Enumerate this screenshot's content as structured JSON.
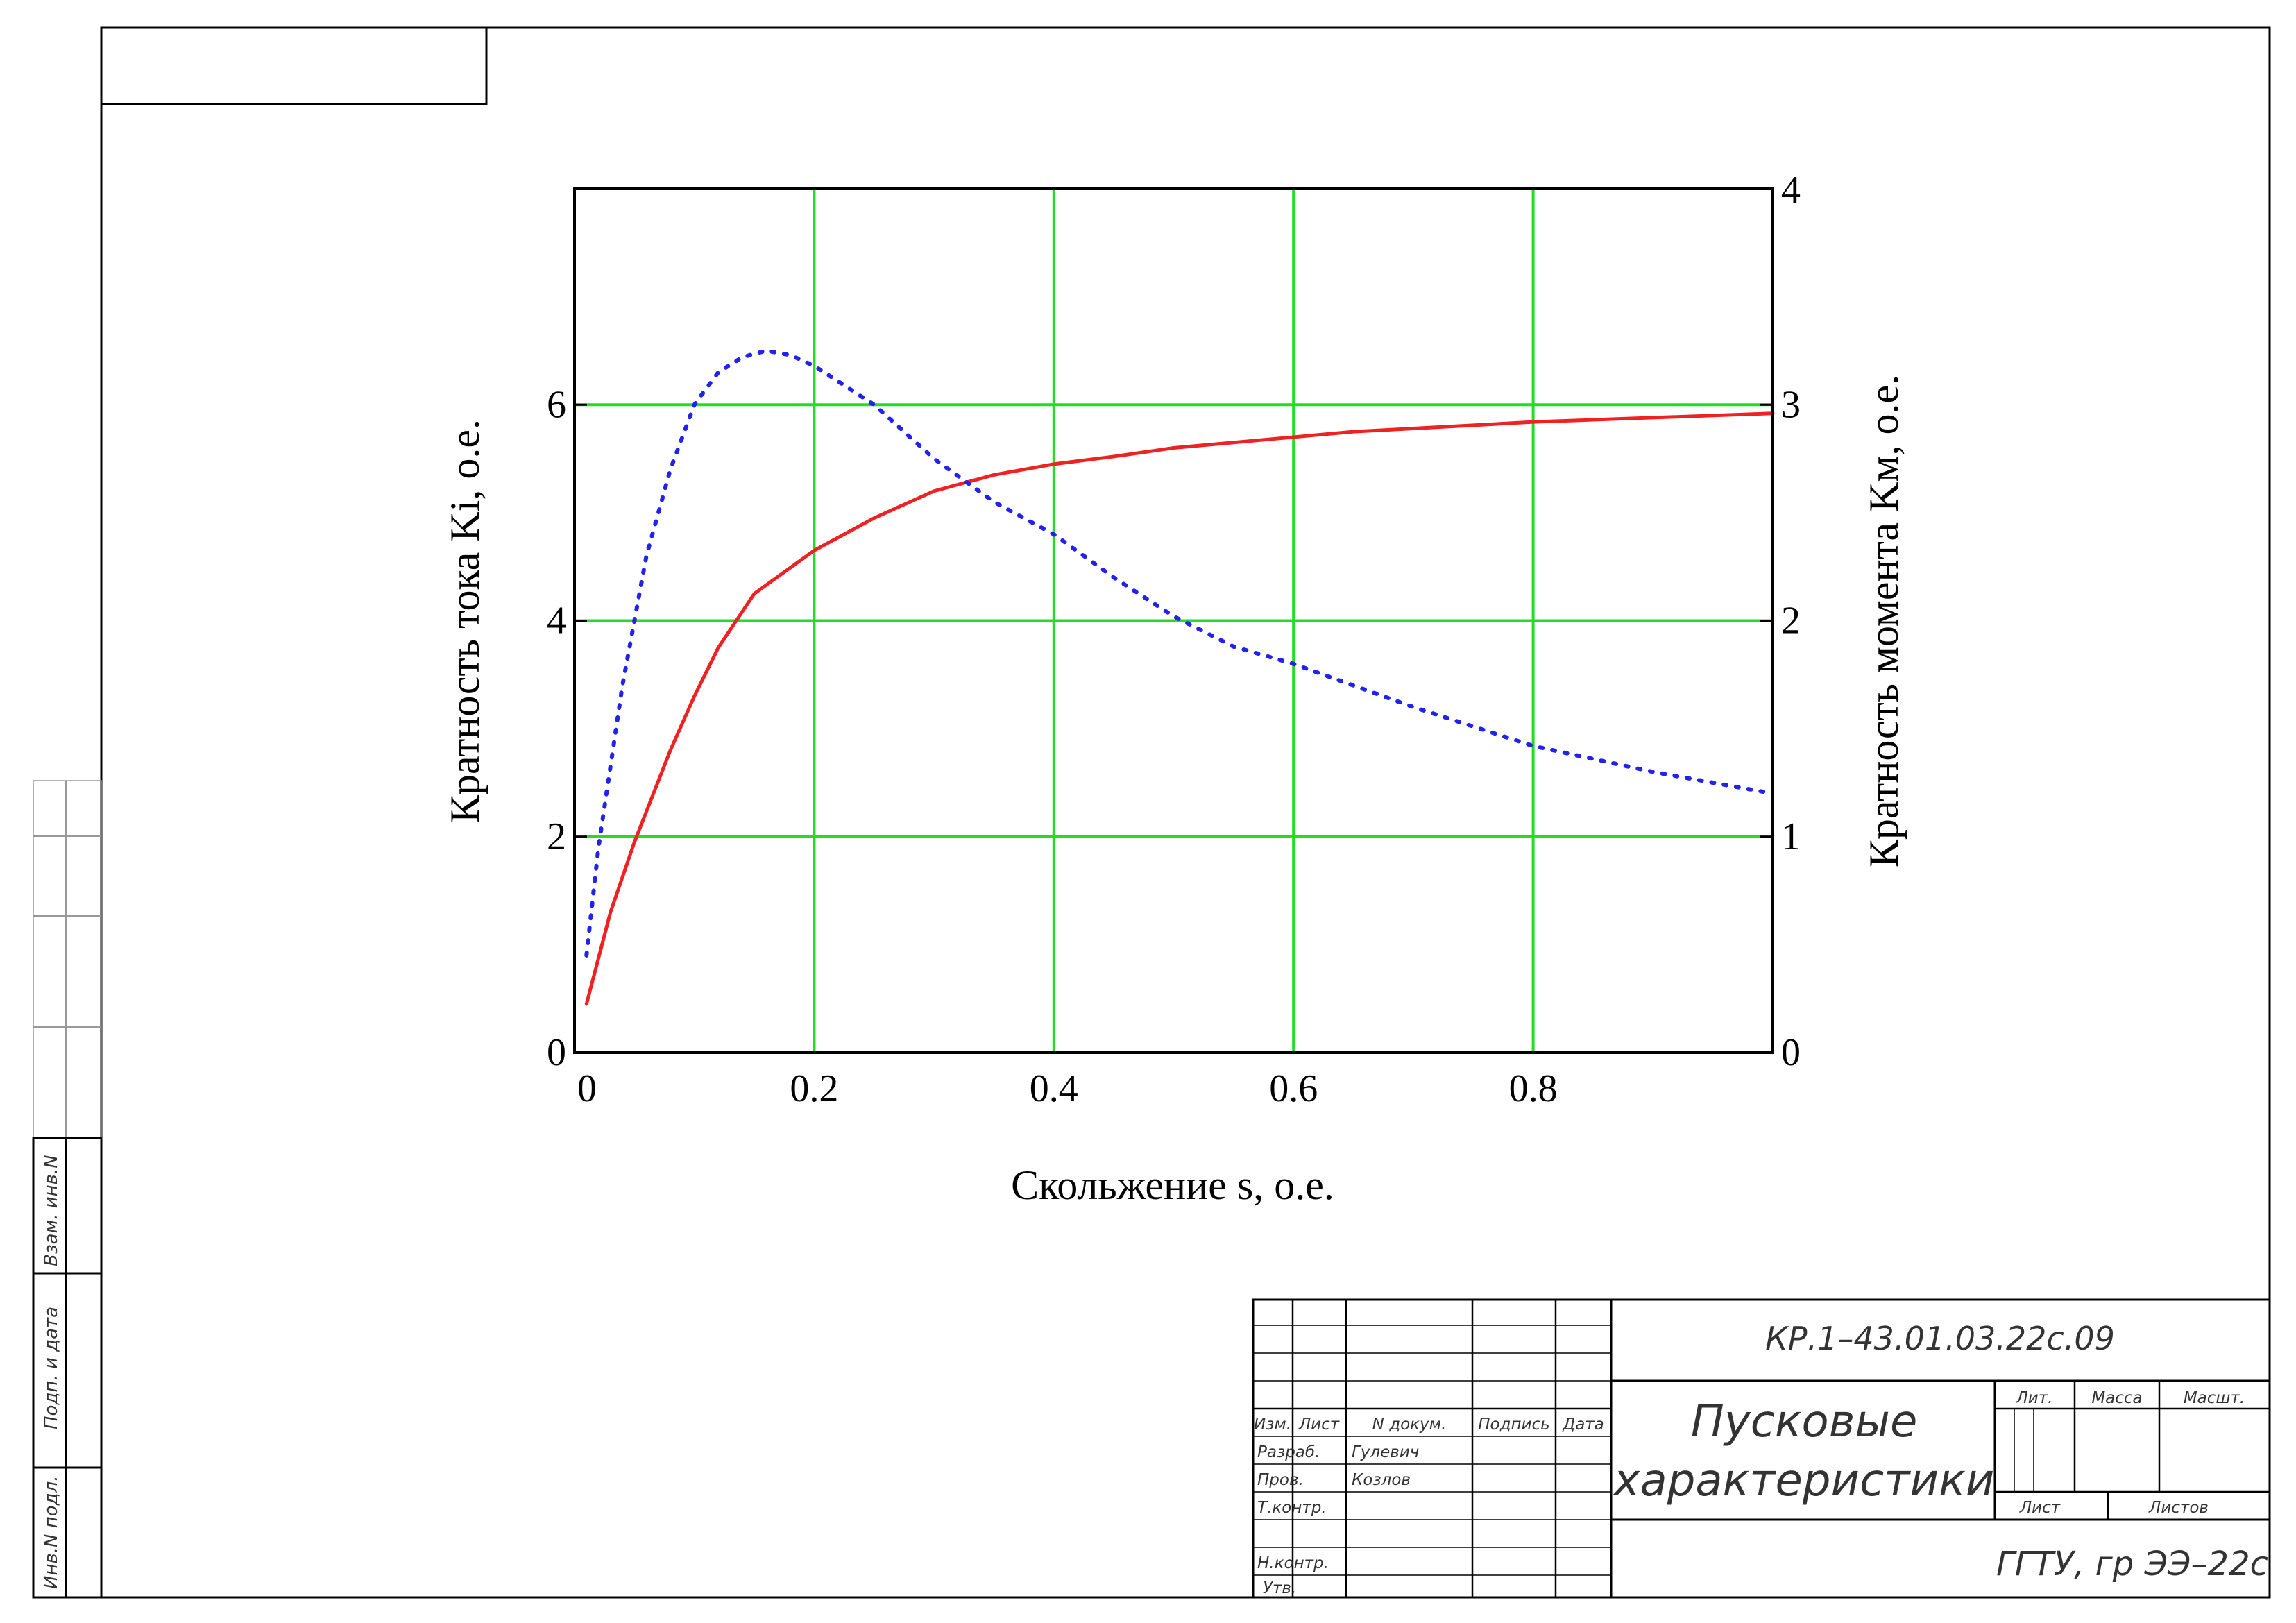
{
  "stamp": {
    "doc_code": "КР.1–43.01.03.22с.09",
    "title_line1": "Пусковые",
    "title_line2": "характеристики",
    "org": "ГГТУ, гр ЭЭ–22с",
    "col_izm": "Изм.",
    "col_list": "Лист",
    "col_ndokum": "N докум.",
    "col_podpis": "Подпись",
    "col_data": "Дата",
    "razrab_label": "Разраб.",
    "razrab_name": "Гулевич",
    "prov_label": "Пров.",
    "prov_name": "Козлов",
    "tkontr_label": "Т.контр.",
    "nkontr_label": "Н.контр.",
    "utv_label": "Утв.",
    "lit_label": "Лит.",
    "massa_label": "Масса",
    "masshtab_label": "Масшт.",
    "list_label": "Лист",
    "listov_label": "Листов"
  },
  "side_margin": {
    "vzam_label": "Взам. инв.N",
    "podp_label": "Подп. и дата",
    "invpodl_label": "Инв.N подл."
  },
  "chart_data": {
    "type": "line",
    "xlabel": "Скольжение s, о.е.",
    "ylabel_left": "Кратность тока Ki, о.е.",
    "ylabel_right": "Кратность момента Kм, о.е.",
    "xlim": [
      0,
      1
    ],
    "ylim_left": [
      0,
      8
    ],
    "ylim_right": [
      0,
      4
    ],
    "x_ticks": [
      0,
      0.2,
      0.4,
      0.6,
      0.8
    ],
    "x_tick_labels": [
      "0",
      "0.2",
      "0.4",
      "0.6",
      "0.8"
    ],
    "y_left_ticks": [
      0,
      2,
      4,
      6
    ],
    "y_left_tick_labels": [
      "0",
      "2",
      "4",
      "6"
    ],
    "y_right_ticks": [
      0,
      1,
      2,
      3,
      4
    ],
    "y_right_tick_labels": [
      "0",
      "1",
      "2",
      "3",
      "4"
    ],
    "grid": true,
    "grid_color": "#22dd22",
    "series": [
      {
        "axis": "left",
        "style": "solid",
        "color": "#ee2222",
        "x": [
          0.01,
          0.03,
          0.05,
          0.08,
          0.1,
          0.12,
          0.15,
          0.2,
          0.25,
          0.3,
          0.35,
          0.4,
          0.45,
          0.5,
          0.55,
          0.6,
          0.65,
          0.7,
          0.75,
          0.8,
          0.85,
          0.9,
          0.95,
          1.0
        ],
        "y": [
          0.45,
          1.3,
          1.95,
          2.8,
          3.3,
          3.75,
          4.25,
          4.65,
          4.95,
          5.2,
          5.35,
          5.45,
          5.52,
          5.6,
          5.65,
          5.7,
          5.75,
          5.78,
          5.81,
          5.84,
          5.86,
          5.88,
          5.9,
          5.92
        ]
      },
      {
        "axis": "right",
        "style": "dotted",
        "color": "#2222ee",
        "x": [
          0.01,
          0.02,
          0.04,
          0.06,
          0.08,
          0.1,
          0.12,
          0.14,
          0.16,
          0.18,
          0.2,
          0.25,
          0.3,
          0.35,
          0.4,
          0.45,
          0.5,
          0.55,
          0.6,
          0.7,
          0.8,
          0.9,
          1.0
        ],
        "y": [
          0.45,
          0.95,
          1.7,
          2.3,
          2.7,
          3.0,
          3.15,
          3.22,
          3.25,
          3.23,
          3.18,
          3.0,
          2.75,
          2.55,
          2.4,
          2.2,
          2.02,
          1.88,
          1.8,
          1.6,
          1.42,
          1.3,
          1.2
        ]
      }
    ]
  }
}
